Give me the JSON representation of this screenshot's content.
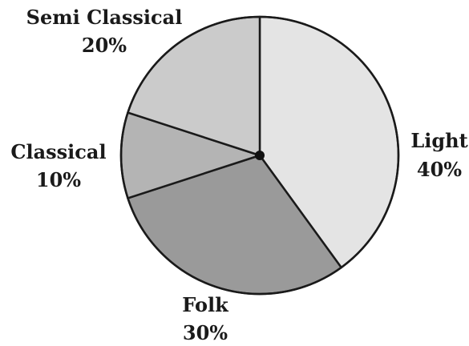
{
  "chart_data": {
    "type": "pie",
    "title": "",
    "slices": [
      {
        "key": "light",
        "label": "Light",
        "percent_text": "40%",
        "value": 40,
        "color": "#e4e4e4"
      },
      {
        "key": "folk",
        "label": "Folk",
        "percent_text": "30%",
        "value": 30,
        "color": "#9a9a9a"
      },
      {
        "key": "classical",
        "label": "Classical",
        "percent_text": "10%",
        "value": 10,
        "color": "#b4b4b4"
      },
      {
        "key": "semi-classical",
        "label": "Semi Classical",
        "percent_text": "20%",
        "value": 20,
        "color": "#cbcbcb"
      }
    ],
    "legend": "none",
    "stroke_color": "#1a1a1a",
    "center_dot_color": "#111111"
  }
}
